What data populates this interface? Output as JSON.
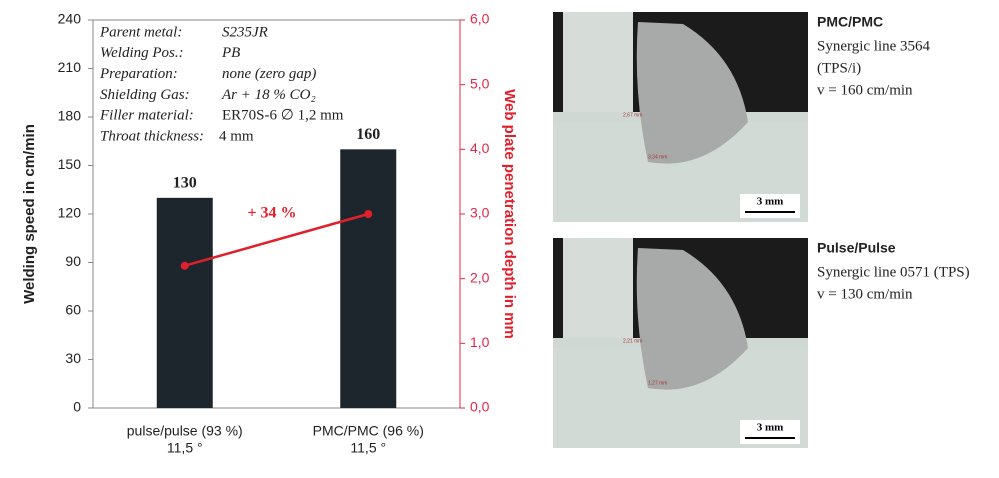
{
  "chart_data": {
    "type": "bar",
    "ylabel": "Welding speed in cm/min",
    "y2label": "Web plate penetration depth in mm",
    "categories": [
      "pulse/pulse (93 %)",
      "PMC/PMC (96 %)"
    ],
    "category_sublabels": [
      "11,5 °",
      "11,5 °"
    ],
    "series": [
      {
        "type": "bar",
        "color": "#1e262d",
        "values": [
          130,
          160
        ]
      },
      {
        "type": "line",
        "color": "#e0202c",
        "values": [
          2.2,
          3.0
        ],
        "axis": "y2"
      }
    ],
    "annotation": "+ 34 %",
    "ylim": [
      0,
      240
    ],
    "yticks": [
      0,
      30,
      60,
      90,
      120,
      150,
      180,
      210,
      240
    ],
    "y2lim": [
      0,
      6
    ],
    "y2ticks": [
      {
        "value": 0,
        "label": "0,0"
      },
      {
        "value": 1,
        "label": "1,0"
      },
      {
        "value": 2,
        "label": "2,0"
      },
      {
        "value": 3,
        "label": "3,0"
      },
      {
        "value": 4,
        "label": "4,0"
      },
      {
        "value": 5,
        "label": "5,0"
      },
      {
        "value": 6,
        "label": "6,0"
      }
    ],
    "y2color": "#e0284a",
    "grid": false,
    "info": [
      {
        "label": "Parent metal:",
        "value": "S235JR"
      },
      {
        "label": "Welding Pos.:",
        "value": "PB"
      },
      {
        "label": "Preparation:",
        "value": "none (zero gap)"
      },
      {
        "label": "Shielding Gas:",
        "value": "Ar + 18 % CO₂"
      },
      {
        "label": "Filler material:",
        "value": "ER70S-6 ∅ 1,2 mm"
      },
      {
        "label": "Throat thickness:",
        "value": "4 mm"
      }
    ]
  },
  "micrographs": [
    {
      "title": "PMC/PMC",
      "lines": [
        "Synergic line 3564",
        "(TPS/i)",
        "v = 160 cm/min"
      ],
      "scale": "3 mm",
      "measurements": [
        "2,67 mm",
        "3,34 mm"
      ]
    },
    {
      "title": "Pulse/Pulse",
      "lines": [
        "Synergic line 0571 (TPS)",
        "v = 130 cm/min"
      ],
      "scale": "3 mm",
      "measurements": [
        "2,21 mm",
        "1,27 mm"
      ]
    }
  ]
}
